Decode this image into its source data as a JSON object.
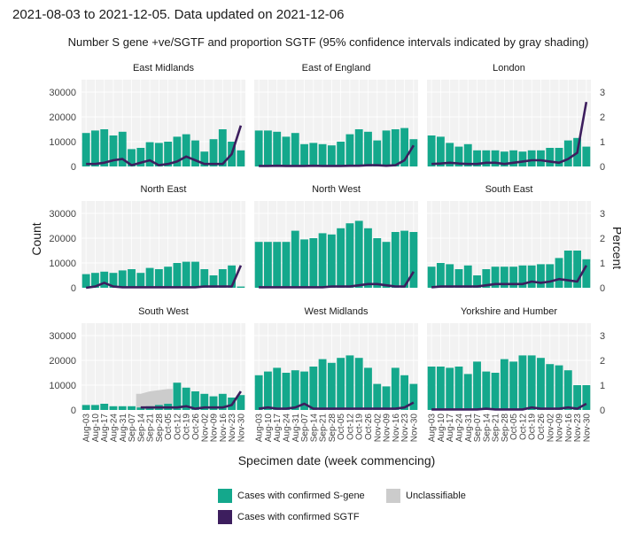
{
  "header": "2021-08-03 to 2021-12-05. Data updated on 2021-12-06",
  "subtitle": "Number S gene +ve/SGTF and proportion SGTF (95% confidence intervals indicated by gray shading)",
  "colors": {
    "sgene": "#14a88c",
    "sgtf": "#3d1e5e",
    "unclass": "#cccccc",
    "panel": "#f2f2f2"
  },
  "legend": {
    "sgene": "Cases with confirmed S-gene",
    "unclass": "Unclassifiable",
    "sgtf": "Cases with confirmed SGTF"
  },
  "chart_data": {
    "type": "bar",
    "xlabel": "Specimen date (week commencing)",
    "ylabel": "Count",
    "ylabel_right": "Percent",
    "ylim": [
      0,
      35000
    ],
    "yticks": [
      0,
      10000,
      20000,
      30000
    ],
    "ylim_right": [
      0,
      3.5
    ],
    "yticks_right": [
      0,
      1,
      2,
      3
    ],
    "categories": [
      "Aug-03",
      "Aug-10",
      "Aug-17",
      "Aug-24",
      "Aug-31",
      "Sep-07",
      "Sep-14",
      "Sep-21",
      "Sep-28",
      "Oct-05",
      "Oct-12",
      "Oct-19",
      "Oct-26",
      "Nov-02",
      "Nov-09",
      "Nov-16",
      "Nov-23",
      "Nov-30"
    ],
    "xtick_labels": [
      "Aug-03",
      "Aug-10",
      "Aug-17",
      "Aug-24",
      "Aug-31",
      "Sep-07",
      "Sep-14",
      "Sep-21",
      "Sep-28",
      "Oct-05",
      "Oct-12",
      "Oct-19",
      "Oct-26",
      "Nov-02",
      "Nov-09",
      "Nov-16",
      "Nov-23",
      "Nov-30"
    ],
    "panels": [
      {
        "name": "East Midlands",
        "sgene": [
          13500,
          14500,
          15000,
          12500,
          14000,
          7000,
          7500,
          9800,
          9500,
          10000,
          12000,
          13000,
          10500,
          6000,
          11000,
          15000,
          10000,
          6500
        ],
        "unclass": [
          0,
          0,
          0,
          0,
          0,
          0,
          0,
          0,
          0,
          0,
          0,
          0,
          0,
          0,
          0,
          0,
          0,
          0
        ],
        "percent": [
          0.1,
          0.1,
          0.15,
          0.25,
          0.3,
          0.05,
          0.15,
          0.25,
          0.05,
          0.1,
          0.2,
          0.4,
          0.25,
          0.1,
          0.1,
          0.1,
          0.5,
          1.65
        ]
      },
      {
        "name": "East of England",
        "sgene": [
          14500,
          14500,
          14000,
          12000,
          13500,
          9000,
          9500,
          9000,
          8500,
          10000,
          13000,
          15000,
          14000,
          10500,
          14500,
          15000,
          15500,
          11000
        ],
        "unclass": [
          0,
          0,
          0,
          0,
          0,
          0,
          0,
          0,
          0,
          0,
          0,
          0,
          0,
          0,
          0,
          0,
          0,
          0
        ],
        "percent": [
          0.02,
          0.02,
          0.03,
          0.02,
          0.02,
          0.02,
          0.03,
          0.02,
          0.02,
          0.02,
          0.03,
          0.03,
          0.05,
          0.05,
          0.03,
          0.05,
          0.25,
          0.85
        ]
      },
      {
        "name": "London",
        "sgene": [
          12500,
          12000,
          9500,
          8000,
          9000,
          6500,
          6500,
          6500,
          6000,
          6500,
          6000,
          6500,
          6500,
          7500,
          7500,
          10500,
          11500,
          8000
        ],
        "unclass": [
          0,
          0,
          0,
          0,
          0,
          0,
          0,
          0,
          0,
          0,
          0,
          0,
          0,
          0,
          0,
          0,
          0,
          0
        ],
        "percent": [
          0.1,
          0.12,
          0.15,
          0.12,
          0.1,
          0.1,
          0.15,
          0.15,
          0.1,
          0.15,
          0.2,
          0.25,
          0.25,
          0.2,
          0.15,
          0.3,
          0.55,
          2.6
        ]
      },
      {
        "name": "North East",
        "sgene": [
          5500,
          6000,
          6500,
          6000,
          7000,
          7500,
          6000,
          8000,
          7500,
          8500,
          10000,
          10500,
          10500,
          7500,
          5000,
          7500,
          9000,
          500
        ],
        "unclass": [
          0,
          0,
          0,
          0,
          0,
          0,
          0,
          0,
          0,
          0,
          0,
          0,
          0,
          0,
          0,
          0,
          0,
          0
        ],
        "percent": [
          0,
          0.05,
          0.2,
          0.05,
          0.02,
          0.02,
          0.02,
          0.02,
          0.02,
          0.02,
          0.02,
          0.02,
          0.02,
          0.05,
          0.05,
          0.05,
          0.05,
          0.9
        ]
      },
      {
        "name": "North West",
        "sgene": [
          18500,
          18500,
          18500,
          18500,
          23000,
          19500,
          20000,
          22000,
          21500,
          24000,
          26000,
          27000,
          24000,
          20000,
          18500,
          22500,
          23000,
          22500
        ],
        "unclass": [
          0,
          0,
          0,
          0,
          0,
          0,
          0,
          0,
          0,
          0,
          0,
          0,
          0,
          0,
          0,
          0,
          0,
          0
        ],
        "percent": [
          0.02,
          0.02,
          0.02,
          0.02,
          0.02,
          0.02,
          0.02,
          0.02,
          0.05,
          0.05,
          0.05,
          0.1,
          0.15,
          0.15,
          0.1,
          0.05,
          0.05,
          0.65
        ]
      },
      {
        "name": "South East",
        "sgene": [
          8500,
          10000,
          9500,
          7500,
          9000,
          5000,
          7500,
          8500,
          8500,
          8500,
          9000,
          9000,
          9500,
          9500,
          12000,
          15000,
          15000,
          11500
        ],
        "unclass": [
          0,
          0,
          0,
          0,
          0,
          0,
          0,
          0,
          0,
          0,
          0,
          0,
          0,
          0,
          0,
          0,
          0,
          0
        ],
        "percent": [
          0.02,
          0.05,
          0.05,
          0.05,
          0.05,
          0.05,
          0.1,
          0.15,
          0.15,
          0.15,
          0.15,
          0.25,
          0.2,
          0.25,
          0.35,
          0.3,
          0.25,
          0.9
        ]
      },
      {
        "name": "South West",
        "sgene": [
          2000,
          2000,
          2500,
          1500,
          1500,
          1500,
          1000,
          1500,
          2000,
          2500,
          11000,
          9000,
          7500,
          6500,
          5500,
          6500,
          5000,
          6000
        ],
        "unclass": [
          0,
          0,
          0,
          0,
          0,
          0,
          6500,
          7500,
          8000,
          8500,
          0,
          0,
          0,
          0,
          0,
          0,
          0,
          0
        ],
        "percent": [
          null,
          null,
          null,
          null,
          null,
          null,
          0.1,
          0.1,
          0.1,
          0.1,
          0.1,
          0.15,
          0.05,
          0.1,
          0.1,
          0.1,
          0.2,
          0.75
        ]
      },
      {
        "name": "West Midlands",
        "sgene": [
          14000,
          15500,
          17000,
          15000,
          16000,
          15500,
          17500,
          20500,
          19000,
          21000,
          22000,
          21000,
          17000,
          10500,
          9500,
          17000,
          14000,
          10500
        ],
        "unclass": [
          0,
          0,
          0,
          0,
          0,
          0,
          0,
          0,
          0,
          0,
          0,
          0,
          0,
          0,
          0,
          0,
          0,
          0
        ],
        "percent": [
          0.05,
          0.1,
          0.05,
          0.05,
          0.1,
          0.25,
          0.05,
          0.05,
          0.05,
          0.05,
          0.05,
          0.05,
          0.05,
          0.05,
          0.05,
          0.05,
          0.1,
          0.3
        ]
      },
      {
        "name": "Yorkshire and Humber",
        "sgene": [
          17500,
          17500,
          17000,
          17500,
          14500,
          19500,
          15500,
          15000,
          20500,
          19500,
          22000,
          22000,
          21000,
          18500,
          18000,
          16000,
          10000,
          10000
        ],
        "unclass": [
          0,
          0,
          0,
          0,
          0,
          0,
          0,
          0,
          0,
          0,
          0,
          0,
          0,
          0,
          0,
          0,
          0,
          0
        ],
        "percent": [
          0.02,
          0.02,
          0.02,
          0.02,
          0.02,
          0.02,
          0.05,
          0.02,
          0.02,
          0.02,
          0.02,
          0.1,
          0.05,
          0.05,
          0.05,
          0.1,
          0.05,
          0.25
        ]
      }
    ]
  }
}
